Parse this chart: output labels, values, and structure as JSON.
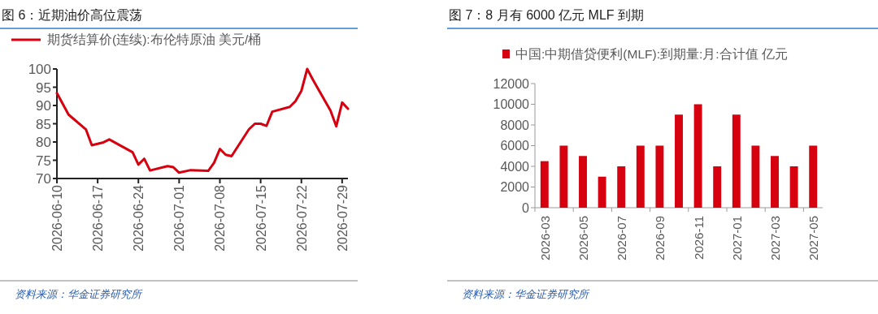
{
  "chart_data": [
    {
      "type": "line",
      "title": "图 6：近期油价高位震荡",
      "x": [
        "2026-06-10",
        "2026-06-12",
        "2026-06-15",
        "2026-06-16",
        "2026-06-18",
        "2026-06-19",
        "2026-06-23",
        "2026-06-24",
        "2026-06-25",
        "2026-06-26",
        "2026-06-29",
        "2026-06-30",
        "2026-07-01",
        "2026-07-03",
        "2026-07-06",
        "2026-07-07",
        "2026-07-08",
        "2026-07-09",
        "2026-07-10",
        "2026-07-13",
        "2026-07-14",
        "2026-07-15",
        "2026-07-16",
        "2026-07-17",
        "2026-07-20",
        "2026-07-21",
        "2026-07-22",
        "2026-07-23",
        "2026-07-24",
        "2026-07-27",
        "2026-07-28",
        "2026-07-29",
        "2026-07-30"
      ],
      "series": [
        {
          "name": "期货结算价(连续):布伦特原油 美元/桶",
          "color": "#d7000f",
          "values": [
            93.4,
            87.5,
            83.4,
            79.1,
            79.9,
            80.7,
            77.2,
            73.8,
            75.4,
            72.2,
            73.4,
            73.1,
            71.6,
            72.3,
            72.1,
            74.3,
            78.1,
            76.5,
            76.1,
            83.5,
            85.0,
            85.0,
            84.4,
            88.3,
            89.6,
            91.2,
            94.0,
            100,
            97.0,
            88.6,
            84.3,
            90.8,
            89.1
          ]
        }
      ],
      "xlim": [
        "2026-06-10",
        "2026-07-30"
      ],
      "xticks": [
        "2026-06-10",
        "2026-06-17",
        "2026-06-24",
        "2026-07-01",
        "2026-07-08",
        "2026-07-15",
        "2026-07-22",
        "2026-07-29"
      ],
      "ylim": [
        70,
        100
      ],
      "yticks": [
        70,
        75,
        80,
        85,
        90,
        95,
        100
      ],
      "legend": "top",
      "line_style": "solid",
      "marker": "none",
      "annotations": [
        "资料来源：华金证券研究所"
      ]
    },
    {
      "type": "bar",
      "title": "图 7：8 月有 6000 亿元 MLF 到期",
      "categories": [
        "2026-03",
        null,
        "2026-05",
        null,
        "2026-07",
        null,
        "2026-09",
        null,
        "2026-11",
        null,
        "2027-01",
        null,
        "2027-03",
        null,
        "2027-05"
      ],
      "series": [
        {
          "name": "中国:中期借贷便利(MLF):到期量:月:合计值 亿元",
          "color": "#d7000f",
          "values": [
            4500,
            6000,
            5000,
            3000,
            4000,
            6000,
            6000,
            9000,
            10000,
            4000,
            9000,
            6000,
            5000,
            4000,
            6000
          ]
        }
      ],
      "ylim": [
        0,
        12000
      ],
      "yticks": [
        0,
        2000,
        4000,
        6000,
        8000,
        10000,
        12000
      ],
      "legend": "top",
      "annotations": [
        "资料来源：华金证券研究所"
      ]
    }
  ]
}
